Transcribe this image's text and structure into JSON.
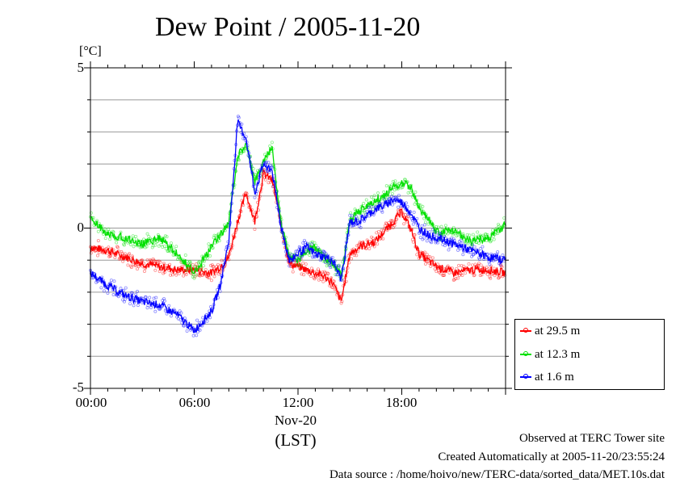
{
  "title": "Dew Point / 2005-11-20",
  "y_unit": "[°C]",
  "x_sub_label": "Nov-20",
  "x_label": "(LST)",
  "notes": {
    "site": "Observed at TERC Tower site",
    "created": "Created Automatically at 2005-11-20/23:55:24",
    "source": "Data source : /home/hoivo/new/TERC-data/sorted_data/MET.10s.dat"
  },
  "colors": {
    "red": "#ff0000",
    "green": "#00e000",
    "blue": "#0000ff",
    "grid": "#999999"
  },
  "chart_data": {
    "type": "line",
    "title": "Dew Point / 2005-11-20",
    "xlabel": "(LST)",
    "ylabel": "[°C]",
    "xlim": [
      0,
      24
    ],
    "ylim": [
      -5,
      5
    ],
    "x_ticks": [
      "00:00",
      "06:00",
      "12:00",
      "18:00"
    ],
    "y_ticks": [
      "5",
      "0",
      "-5"
    ],
    "grid": true,
    "legend_position": "bottom-right outside",
    "x": [
      0,
      1,
      2,
      3,
      4,
      5,
      6,
      7,
      7.5,
      8,
      8.5,
      9,
      9.5,
      10,
      10.5,
      11,
      11.5,
      12,
      12.5,
      13,
      13.5,
      14,
      14.5,
      15,
      15.5,
      16,
      16.5,
      17,
      17.5,
      18,
      18.5,
      19,
      19.5,
      20,
      21,
      22,
      23,
      24
    ],
    "series": [
      {
        "name": "at 29.5 m",
        "color": "#ff0000",
        "values": [
          -0.6,
          -0.7,
          -0.9,
          -1.1,
          -1.2,
          -1.3,
          -1.3,
          -1.4,
          -1.2,
          -0.9,
          0.2,
          1.1,
          0.2,
          1.7,
          1.5,
          0.2,
          -1.1,
          -1.2,
          -1.3,
          -1.4,
          -1.5,
          -1.7,
          -2.3,
          -0.8,
          -0.6,
          -0.5,
          -0.4,
          -0.1,
          0.2,
          0.5,
          0.0,
          -0.8,
          -1.0,
          -1.2,
          -1.4,
          -1.3,
          -1.3,
          -1.4
        ]
      },
      {
        "name": "at 12.3 m",
        "color": "#00e000",
        "values": [
          0.3,
          -0.2,
          -0.3,
          -0.5,
          -0.3,
          -0.8,
          -1.4,
          -0.6,
          -0.2,
          0.2,
          2.2,
          2.7,
          1.4,
          2.1,
          2.5,
          0.2,
          -0.9,
          -1.0,
          -0.7,
          -0.6,
          -0.9,
          -1.1,
          -1.5,
          0.3,
          0.5,
          0.7,
          0.9,
          1.0,
          1.3,
          1.4,
          1.3,
          0.6,
          0.3,
          -0.1,
          -0.1,
          -0.4,
          -0.3,
          0.1
        ]
      },
      {
        "name": "at 1.6 m",
        "color": "#0000ff",
        "values": [
          -1.4,
          -1.8,
          -2.1,
          -2.3,
          -2.4,
          -2.7,
          -3.2,
          -2.6,
          -1.8,
          -0.4,
          3.3,
          2.8,
          1.1,
          2.0,
          1.8,
          0.1,
          -1.0,
          -0.8,
          -0.6,
          -0.8,
          -0.9,
          -1.0,
          -1.6,
          0.2,
          0.2,
          0.4,
          0.6,
          0.7,
          0.9,
          0.8,
          0.5,
          0.0,
          -0.2,
          -0.3,
          -0.5,
          -0.7,
          -0.9,
          -1.0
        ]
      }
    ]
  }
}
